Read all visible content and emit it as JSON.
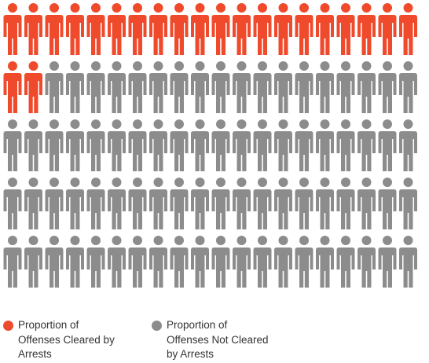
{
  "chart_data": {
    "type": "pictograph",
    "total_icons": 100,
    "columns": 20,
    "rows": 5,
    "values": [
      {
        "name": "Proportion of Offenses Cleared by Arrests",
        "count": 22,
        "color": "#f04a2c"
      },
      {
        "name": "Proportion of Offenses Not Cleared by Arrests",
        "count": 78,
        "color": "#8c8c8c"
      }
    ],
    "legend": {
      "position": "bottom-left",
      "items": [
        {
          "label": "Proportion of\nOffenses Cleared by\nArrests",
          "color": "#f04a2c",
          "icon": "circle-dot-icon"
        },
        {
          "label": "Proportion of\nOffenses Not Cleared\nby Arrests",
          "color": "#8c8c8c",
          "icon": "circle-dot-icon"
        }
      ]
    },
    "icon": "person-icon"
  }
}
